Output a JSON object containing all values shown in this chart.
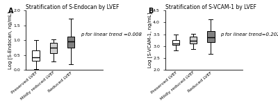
{
  "panel_A": {
    "title": "Stratification of S-Endocan by LVEF",
    "ylabel": "Log [S-Endocan, ng/mL]",
    "ylim": [
      0.0,
      2.0
    ],
    "yticks": [
      0.0,
      0.5,
      1.0,
      1.5,
      2.0
    ],
    "annotation": "p for linear trend =0.008",
    "categories": [
      "Preserved LVEF",
      "Mildly reduced LVEF",
      "Reduced LVEF"
    ],
    "box_colors": [
      "#ffffff",
      "#d0d0d0",
      "#808080"
    ],
    "boxes": [
      {
        "whislo": 0.02,
        "q1": 0.3,
        "med": 0.42,
        "q3": 0.65,
        "whishi": 1.0
      },
      {
        "whislo": 0.28,
        "q1": 0.55,
        "med": 0.75,
        "q3": 0.9,
        "whishi": 1.02
      },
      {
        "whislo": 0.18,
        "q1": 0.75,
        "med": 0.95,
        "q3": 1.12,
        "whishi": 1.72
      }
    ]
  },
  "panel_B": {
    "title": "Stratification of S-VCAM-1 by LVEF",
    "ylabel": "Log [S-VCAM-1, ng/mL]",
    "ylim": [
      2.0,
      4.5
    ],
    "yticks": [
      2.0,
      2.5,
      3.0,
      3.5,
      4.0,
      4.5
    ],
    "annotation": "p for linear trend=0.202",
    "categories": [
      "Preserved LVEF",
      "Mildly reduced LVEF",
      "Reduced LVEF"
    ],
    "box_colors": [
      "#ffffff",
      "#d0d0d0",
      "#808080"
    ],
    "boxes": [
      {
        "whislo": 2.82,
        "q1": 3.04,
        "med": 3.1,
        "q3": 3.26,
        "whishi": 3.5
      },
      {
        "whislo": 2.88,
        "q1": 3.1,
        "med": 3.22,
        "q3": 3.4,
        "whishi": 3.52
      },
      {
        "whislo": 2.68,
        "q1": 3.18,
        "med": 3.38,
        "q3": 3.62,
        "whishi": 4.12
      }
    ]
  },
  "label_fontsize": 5.0,
  "tick_fontsize": 4.5,
  "title_fontsize": 5.5,
  "annot_fontsize": 5.0,
  "panel_label_fontsize": 7.0,
  "linewidth": 0.7,
  "box_width": 0.42,
  "background_color": "#ffffff"
}
